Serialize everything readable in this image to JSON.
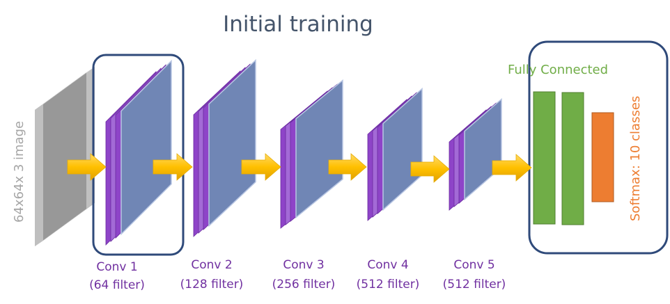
{
  "diagram": {
    "title": "Initial training",
    "input_label": "64x64x 3 image",
    "conv_layers": [
      {
        "name": "Conv 1",
        "filters": "(64 filter)"
      },
      {
        "name": "Conv 2",
        "filters": "(128 filter)"
      },
      {
        "name": "Conv 3",
        "filters": "(256 filter)"
      },
      {
        "name": "Conv 4",
        "filters": "(512 filter)"
      },
      {
        "name": "Conv 5",
        "filters": "(512 filter)"
      }
    ],
    "fc_label": "Fully Connected",
    "softmax_label": "Softmax: 10 classes",
    "colors": {
      "title": "#44546a",
      "frame": "#2f4a7a",
      "filter_purple": "#7030a0",
      "filter_front": "#7086b5",
      "arrow": "#ffc000",
      "fc_green": "#70ad47",
      "softmax_orange": "#ed7d31",
      "input_gray": "#a6a6a6"
    }
  }
}
